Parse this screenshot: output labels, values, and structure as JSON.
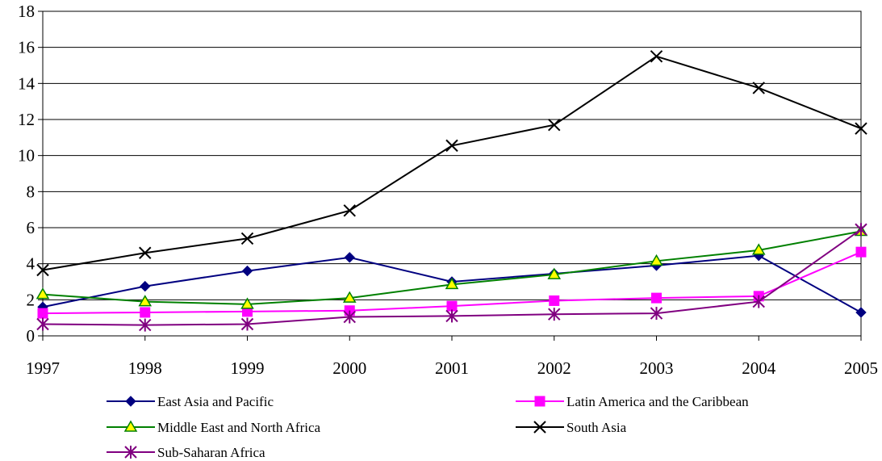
{
  "chart_data": {
    "type": "line",
    "title": "",
    "xlabel": "",
    "ylabel": "",
    "x": [
      "1997",
      "1998",
      "1999",
      "2000",
      "2001",
      "2002",
      "2003",
      "2004",
      "2005"
    ],
    "y_ticks": [
      "0",
      "2",
      "4",
      "6",
      "8",
      "10",
      "12",
      "14",
      "16",
      "18"
    ],
    "ylim": [
      0,
      18
    ],
    "grid": "horizontal",
    "legend_position": "bottom",
    "series": [
      {
        "name": "East Asia and Pacific",
        "color": "#000080",
        "marker": "diamond",
        "values": [
          1.6,
          2.75,
          3.6,
          4.35,
          3.0,
          3.45,
          3.9,
          4.45,
          1.3
        ]
      },
      {
        "name": "Latin America and the Caribbean",
        "color": "#ff00ff",
        "marker": "square",
        "values": [
          1.25,
          1.3,
          1.35,
          1.4,
          1.65,
          1.95,
          2.1,
          2.2,
          4.65
        ]
      },
      {
        "name": "Middle East and North Africa",
        "color": "#008000",
        "marker": "triangle",
        "values": [
          2.3,
          1.9,
          1.75,
          2.1,
          2.85,
          3.4,
          4.15,
          4.75,
          5.8
        ]
      },
      {
        "name": "South Asia",
        "color": "#000000",
        "marker": "x",
        "values": [
          3.65,
          4.6,
          5.4,
          6.95,
          10.55,
          11.7,
          15.5,
          13.75,
          11.5
        ]
      },
      {
        "name": "Sub-Saharan Africa",
        "color": "#800080",
        "marker": "star",
        "values": [
          0.65,
          0.6,
          0.65,
          1.05,
          1.1,
          1.2,
          1.25,
          1.9,
          5.9
        ]
      }
    ]
  }
}
